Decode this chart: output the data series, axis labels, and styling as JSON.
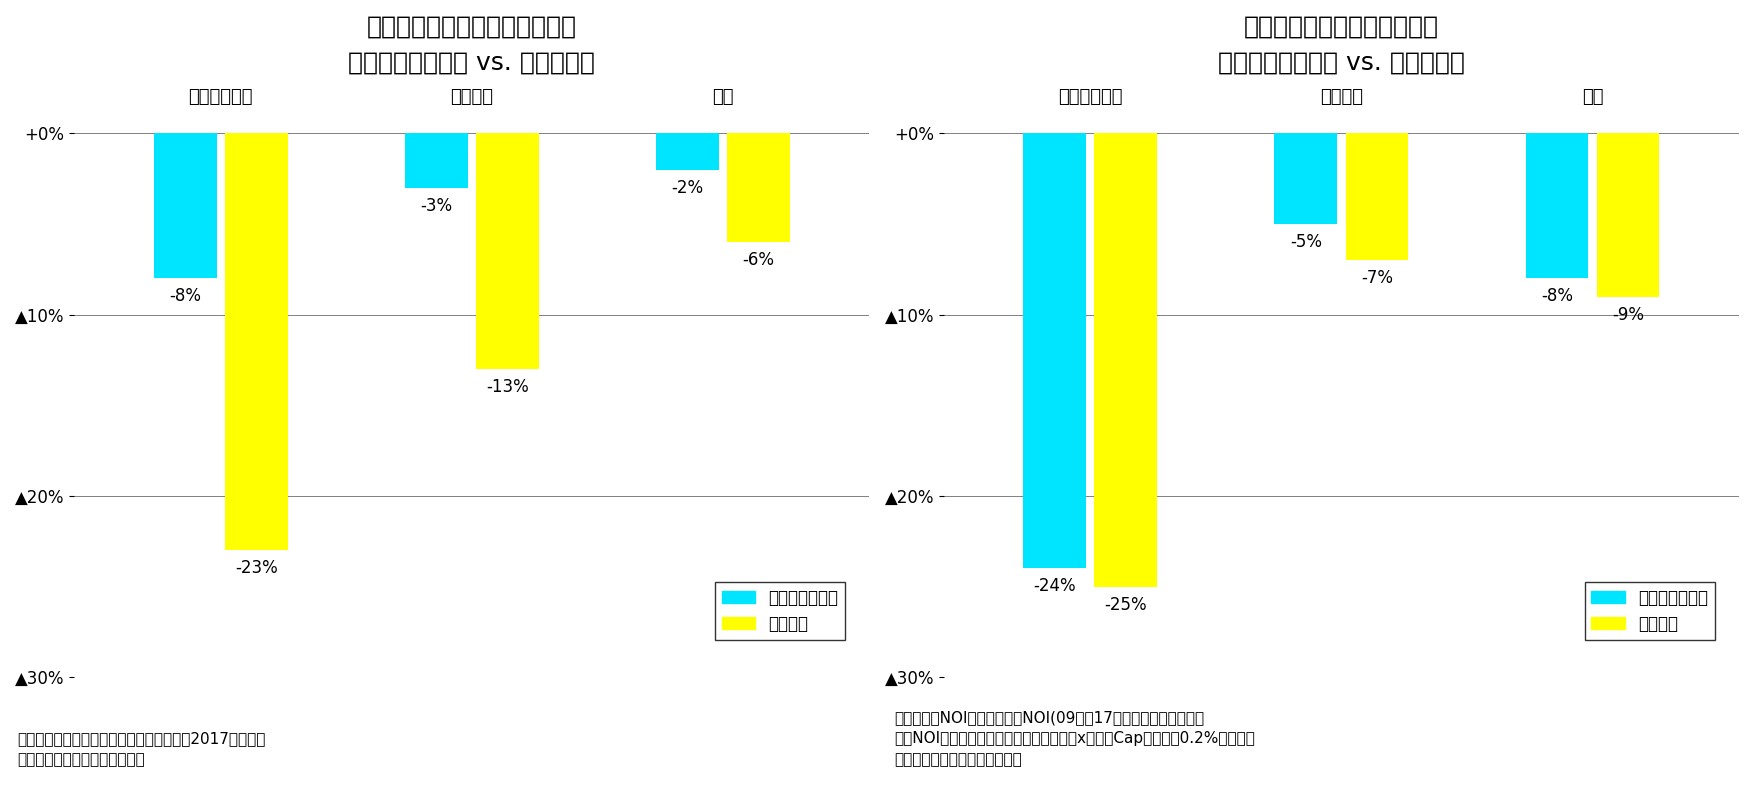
{
  "chart1": {
    "title": "図表２：キャピタル収益の比較",
    "subtitle": "（利害関係者取引 vs. 一般取引）",
    "categories": [
      "オフィスビル",
      "商業施設",
      "住宅"
    ],
    "series1_values": [
      -8,
      -3,
      -2
    ],
    "series2_values": [
      -23,
      -13,
      -6
    ],
    "series1_label": "利害関係者取引",
    "series2_label": "一般取引",
    "bar_labels1": [
      "-8%",
      "-3%",
      "-2%"
    ],
    "bar_labels2": [
      "-23%",
      "-13%",
      "-6%"
    ],
    "note": "（注）取得額に対するキャピタル収益率（2017年時点）\n（出所）開示資料をもとに作成"
  },
  "chart2": {
    "title": "図表３：インカム収益の比較",
    "subtitle": "（利害関係者取引 vs. 一般取引）",
    "categories": [
      "オフィスビル",
      "商業施設",
      "住宅"
    ],
    "series1_values": [
      -24,
      -5,
      -8
    ],
    "series2_values": [
      -25,
      -7,
      -9
    ],
    "series1_label": "利害関係者取引",
    "series2_label": "一般取引",
    "bar_labels1": [
      "-24%",
      "-5%",
      "-8%"
    ],
    "bar_labels2": [
      "-25%",
      "-7%",
      "-9%"
    ],
    "note": "（注）想定NOIに対する実績NOI(09年〜17年の平均値）の減少率\n想定NOI：便宜上、取得時の「鑑定価格」x「鑑定Capレート＋0.2%」とした\n（出所）開示資料をもとに作成"
  },
  "color_cyan": "#00E5FF",
  "color_yellow": "#FFFF00",
  "ylim": [
    -30,
    0
  ],
  "yticks": [
    0,
    -10,
    -20,
    -30
  ],
  "ytick_labels": [
    "+0%",
    "▲10%",
    "▲20%",
    "▲30%"
  ],
  "bar_width": 0.3,
  "title_fontsize": 18,
  "subtitle_fontsize": 15,
  "category_fontsize": 13,
  "tick_fontsize": 12,
  "label_fontsize": 12,
  "note_fontsize": 11,
  "legend_fontsize": 12,
  "bg_color": "#FFFFFF"
}
